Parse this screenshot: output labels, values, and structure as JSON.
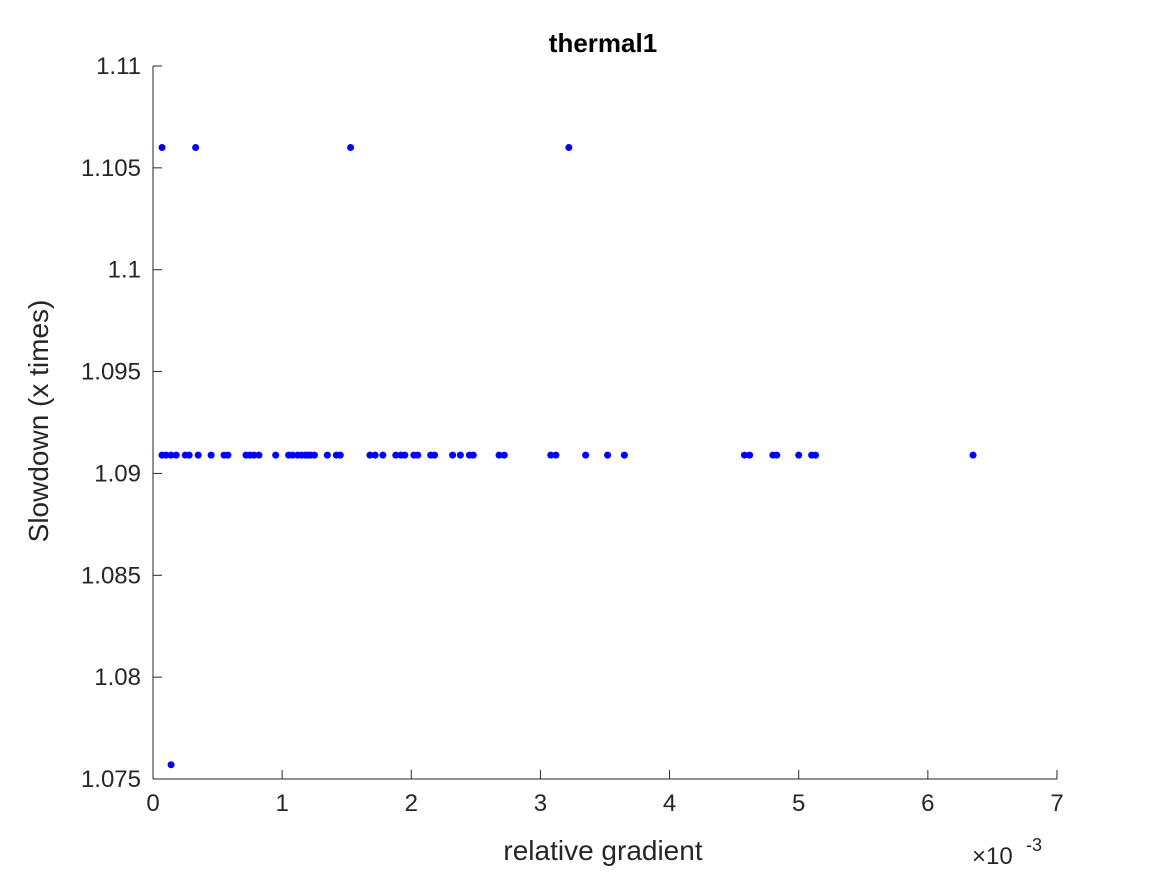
{
  "chart_data": {
    "type": "scatter",
    "title": "thermal1",
    "xlabel": "relative gradient",
    "ylabel": "Slowdown (x times)",
    "x_exponent_label": {
      "base": "×10",
      "exponent": "-3"
    },
    "x_scale": 0.001,
    "xlim": [
      0,
      7
    ],
    "ylim": [
      1.075,
      1.11
    ],
    "x_ticks": [
      0,
      1,
      2,
      3,
      4,
      5,
      6,
      7
    ],
    "x_tick_labels": [
      "0",
      "1",
      "2",
      "3",
      "4",
      "5",
      "6",
      "7"
    ],
    "y_ticks": [
      1.075,
      1.08,
      1.085,
      1.09,
      1.095,
      1.1,
      1.105,
      1.11
    ],
    "y_tick_labels": [
      "1.075",
      "1.08",
      "1.085",
      "1.09",
      "1.095",
      "1.1",
      "1.105",
      "1.11"
    ],
    "grid": false,
    "marker_color": "#0000ff",
    "series": [
      {
        "points": [
          [
            0.07,
            1.106
          ],
          [
            0.33,
            1.106
          ],
          [
            1.53,
            1.106
          ],
          [
            3.22,
            1.106
          ],
          [
            0.14,
            1.0757
          ],
          [
            0.07,
            1.0909
          ],
          [
            0.1,
            1.0909
          ],
          [
            0.14,
            1.0909
          ],
          [
            0.18,
            1.0909
          ],
          [
            0.25,
            1.0909
          ],
          [
            0.28,
            1.0909
          ],
          [
            0.35,
            1.0909
          ],
          [
            0.45,
            1.0909
          ],
          [
            0.55,
            1.0909
          ],
          [
            0.58,
            1.0909
          ],
          [
            0.72,
            1.0909
          ],
          [
            0.75,
            1.0909
          ],
          [
            0.78,
            1.0909
          ],
          [
            0.82,
            1.0909
          ],
          [
            0.95,
            1.0909
          ],
          [
            1.05,
            1.0909
          ],
          [
            1.08,
            1.0909
          ],
          [
            1.12,
            1.0909
          ],
          [
            1.15,
            1.0909
          ],
          [
            1.18,
            1.0909
          ],
          [
            1.2,
            1.0909
          ],
          [
            1.22,
            1.0909
          ],
          [
            1.25,
            1.0909
          ],
          [
            1.35,
            1.0909
          ],
          [
            1.42,
            1.0909
          ],
          [
            1.45,
            1.0909
          ],
          [
            1.68,
            1.0909
          ],
          [
            1.72,
            1.0909
          ],
          [
            1.78,
            1.0909
          ],
          [
            1.88,
            1.0909
          ],
          [
            1.92,
            1.0909
          ],
          [
            1.95,
            1.0909
          ],
          [
            2.02,
            1.0909
          ],
          [
            2.05,
            1.0909
          ],
          [
            2.15,
            1.0909
          ],
          [
            2.18,
            1.0909
          ],
          [
            2.32,
            1.0909
          ],
          [
            2.38,
            1.0909
          ],
          [
            2.45,
            1.0909
          ],
          [
            2.48,
            1.0909
          ],
          [
            2.68,
            1.0909
          ],
          [
            2.72,
            1.0909
          ],
          [
            3.08,
            1.0909
          ],
          [
            3.12,
            1.0909
          ],
          [
            3.35,
            1.0909
          ],
          [
            3.52,
            1.0909
          ],
          [
            3.65,
            1.0909
          ],
          [
            4.58,
            1.0909
          ],
          [
            4.62,
            1.0909
          ],
          [
            4.8,
            1.0909
          ],
          [
            4.83,
            1.0909
          ],
          [
            5.0,
            1.0909
          ],
          [
            5.1,
            1.0909
          ],
          [
            5.13,
            1.0909
          ],
          [
            6.35,
            1.0909
          ]
        ]
      }
    ]
  }
}
